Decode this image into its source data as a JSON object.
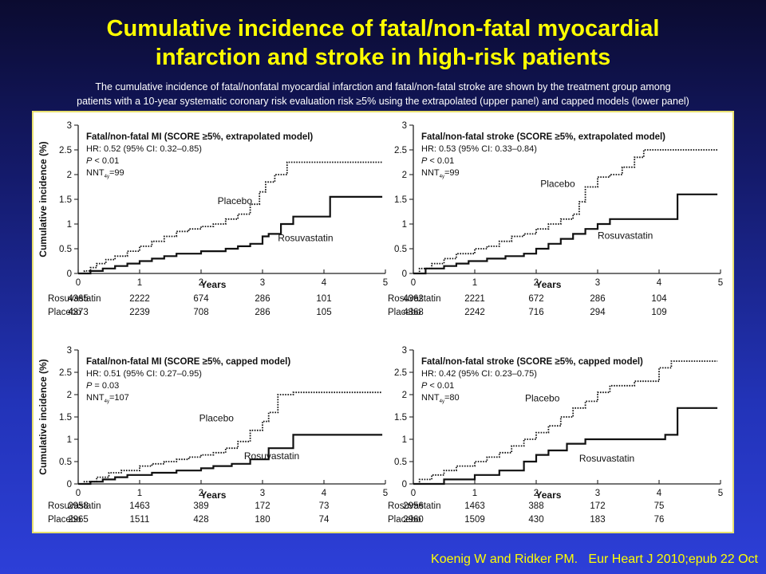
{
  "slide": {
    "title_line1": "Cumulative incidence of fatal/non-fatal myocardial",
    "title_line2": "infarction and stroke in high-risk patients",
    "subtitle_line1": "The cumulative incidence of fatal/nonfatal myocardial infarction and fatal/non-fatal stroke are shown by the treatment group among",
    "subtitle_line2": "patients with a 10-year systematic coronary risk evaluation risk ≥5% using the extrapolated (upper panel) and capped models (lower panel)",
    "citation": "Koenig W and Ridker PM.   Eur Heart J 2010;epub 22 Oct",
    "colors": {
      "title": "#ffff00",
      "subtitle": "#ffffff",
      "citation": "#ffff00",
      "figure_border": "#e8e070"
    }
  },
  "chart_data": [
    {
      "type": "line",
      "title": "Fatal/non-fatal MI (SCORE ≥5%, extrapolated model)",
      "stats": [
        "HR: 0.52 (95% CI: 0.32–0.85)",
        "P < 0.01",
        "NNT=99"
      ],
      "stat_p_letter": "P",
      "stat_p_rest": " < 0.01",
      "nnt_prefix": "NNT",
      "nnt_sub": "4y",
      "nnt_value": "=99",
      "xlabel": "Years",
      "ylabel": "Cumulative incidence (%)",
      "xlim": [
        0,
        5
      ],
      "ylim": [
        0,
        3
      ],
      "x_ticks": [
        "0",
        "1",
        "2",
        "3",
        "4",
        "5"
      ],
      "y_ticks": [
        "0",
        "0.5",
        "1",
        "1.5",
        "2",
        "2.5",
        "3"
      ],
      "series": [
        {
          "name": "Placebo",
          "style": "dotted",
          "points": [
            [
              0,
              0
            ],
            [
              0.1,
              0.05
            ],
            [
              0.2,
              0.12
            ],
            [
              0.3,
              0.2
            ],
            [
              0.45,
              0.28
            ],
            [
              0.6,
              0.35
            ],
            [
              0.8,
              0.45
            ],
            [
              1.0,
              0.55
            ],
            [
              1.2,
              0.65
            ],
            [
              1.4,
              0.75
            ],
            [
              1.6,
              0.85
            ],
            [
              1.8,
              0.9
            ],
            [
              2.0,
              0.95
            ],
            [
              2.2,
              1.0
            ],
            [
              2.4,
              1.1
            ],
            [
              2.6,
              1.2
            ],
            [
              2.8,
              1.4
            ],
            [
              2.95,
              1.65
            ],
            [
              3.05,
              1.85
            ],
            [
              3.2,
              2.0
            ],
            [
              3.4,
              2.25
            ],
            [
              3.6,
              2.25
            ],
            [
              4.2,
              2.25
            ],
            [
              4.4,
              2.25
            ],
            [
              4.95,
              2.25
            ]
          ]
        },
        {
          "name": "Rosuvastatin",
          "style": "solid",
          "points": [
            [
              0,
              0
            ],
            [
              0.2,
              0.05
            ],
            [
              0.4,
              0.1
            ],
            [
              0.6,
              0.15
            ],
            [
              0.8,
              0.2
            ],
            [
              1.0,
              0.25
            ],
            [
              1.2,
              0.3
            ],
            [
              1.4,
              0.35
            ],
            [
              1.6,
              0.4
            ],
            [
              2.0,
              0.45
            ],
            [
              2.4,
              0.5
            ],
            [
              2.6,
              0.55
            ],
            [
              2.8,
              0.6
            ],
            [
              3.0,
              0.75
            ],
            [
              3.1,
              0.8
            ],
            [
              3.3,
              1.0
            ],
            [
              3.5,
              1.15
            ],
            [
              4.0,
              1.15
            ],
            [
              4.1,
              1.55
            ],
            [
              4.95,
              1.55
            ]
          ]
        }
      ],
      "series_labels": {
        "Placebo": [
          2.55,
          1.4
        ],
        "Rosuvastatin": [
          3.7,
          0.65
        ]
      },
      "at_risk_rows": [
        {
          "label": "Rosuvastatin",
          "values": [
            "4365",
            "2222",
            "674",
            "286",
            "101"
          ]
        },
        {
          "label": "Placebo",
          "values": [
            "4373",
            "2239",
            "708",
            "286",
            "105"
          ]
        }
      ]
    },
    {
      "type": "line",
      "title": "Fatal/non-fatal stroke (SCORE ≥5%, extrapolated model)",
      "stats": [
        "HR: 0.53 (95% CI: 0.33–0.84)",
        "P < 0.01",
        "NNT=99"
      ],
      "stat_p_letter": "P",
      "stat_p_rest": " < 0.01",
      "nnt_prefix": "NNT",
      "nnt_sub": "4y",
      "nnt_value": "=99",
      "xlabel": "Years",
      "ylabel": "",
      "xlim": [
        0,
        5
      ],
      "ylim": [
        0,
        3
      ],
      "x_ticks": [
        "0",
        "1",
        "2",
        "3",
        "4",
        "5"
      ],
      "y_ticks": [
        "0",
        "0.5",
        "1",
        "1.5",
        "2",
        "2.5",
        "3"
      ],
      "series": [
        {
          "name": "Placebo",
          "style": "dotted",
          "points": [
            [
              0,
              0
            ],
            [
              0.1,
              0.1
            ],
            [
              0.3,
              0.2
            ],
            [
              0.5,
              0.3
            ],
            [
              0.7,
              0.4
            ],
            [
              1.0,
              0.5
            ],
            [
              1.2,
              0.55
            ],
            [
              1.4,
              0.65
            ],
            [
              1.6,
              0.75
            ],
            [
              1.8,
              0.8
            ],
            [
              2.0,
              0.9
            ],
            [
              2.2,
              1.0
            ],
            [
              2.4,
              1.1
            ],
            [
              2.6,
              1.2
            ],
            [
              2.7,
              1.45
            ],
            [
              2.8,
              1.75
            ],
            [
              3.0,
              1.95
            ],
            [
              3.2,
              2.0
            ],
            [
              3.4,
              2.15
            ],
            [
              3.6,
              2.35
            ],
            [
              3.75,
              2.5
            ],
            [
              4.0,
              2.5
            ],
            [
              4.95,
              2.5
            ]
          ]
        },
        {
          "name": "Rosuvastatin",
          "style": "solid",
          "points": [
            [
              0,
              0
            ],
            [
              0.2,
              0.1
            ],
            [
              0.5,
              0.15
            ],
            [
              0.7,
              0.2
            ],
            [
              0.9,
              0.25
            ],
            [
              1.2,
              0.3
            ],
            [
              1.5,
              0.35
            ],
            [
              1.8,
              0.4
            ],
            [
              2.0,
              0.5
            ],
            [
              2.2,
              0.6
            ],
            [
              2.4,
              0.7
            ],
            [
              2.6,
              0.8
            ],
            [
              2.8,
              0.9
            ],
            [
              3.0,
              1.0
            ],
            [
              3.2,
              1.1
            ],
            [
              3.6,
              1.1
            ],
            [
              4.2,
              1.1
            ],
            [
              4.3,
              1.6
            ],
            [
              4.95,
              1.6
            ]
          ]
        }
      ],
      "series_labels": {
        "Placebo": [
          2.35,
          1.75
        ],
        "Rosuvastatin": [
          3.45,
          0.7
        ]
      },
      "at_risk_rows": [
        {
          "label": "Rosuvastatin",
          "values": [
            "4362",
            "2221",
            "672",
            "286",
            "104"
          ]
        },
        {
          "label": "Placebo",
          "values": [
            "4368",
            "2242",
            "716",
            "294",
            "109"
          ]
        }
      ]
    },
    {
      "type": "line",
      "title": "Fatal/non-fatal MI (SCORE ≥5%, capped model)",
      "stats": [
        "HR: 0.51 (95% CI: 0.27–0.95)",
        "P = 0.03",
        "NNT=107"
      ],
      "stat_p_letter": "P",
      "stat_p_rest": " = 0.03",
      "nnt_prefix": "NNT",
      "nnt_sub": "4y",
      "nnt_value": "=107",
      "xlabel": "Years",
      "ylabel": "Cumulative incidence (%)",
      "xlim": [
        0,
        5
      ],
      "ylim": [
        0,
        3
      ],
      "x_ticks": [
        "0",
        "1",
        "2",
        "3",
        "4",
        "5"
      ],
      "y_ticks": [
        "0",
        "0.5",
        "1",
        "1.5",
        "2",
        "2.5",
        "3"
      ],
      "series": [
        {
          "name": "Placebo",
          "style": "dotted",
          "points": [
            [
              0,
              0
            ],
            [
              0.1,
              0.05
            ],
            [
              0.3,
              0.15
            ],
            [
              0.5,
              0.25
            ],
            [
              0.7,
              0.3
            ],
            [
              1.0,
              0.4
            ],
            [
              1.2,
              0.45
            ],
            [
              1.4,
              0.5
            ],
            [
              1.6,
              0.55
            ],
            [
              1.8,
              0.6
            ],
            [
              2.0,
              0.65
            ],
            [
              2.2,
              0.7
            ],
            [
              2.4,
              0.8
            ],
            [
              2.6,
              0.95
            ],
            [
              2.8,
              1.2
            ],
            [
              3.0,
              1.4
            ],
            [
              3.1,
              1.6
            ],
            [
              3.25,
              2.0
            ],
            [
              3.5,
              2.05
            ],
            [
              4.0,
              2.05
            ],
            [
              4.95,
              2.05
            ]
          ]
        },
        {
          "name": "Rosuvastatin",
          "style": "solid",
          "points": [
            [
              0,
              0
            ],
            [
              0.2,
              0.05
            ],
            [
              0.4,
              0.1
            ],
            [
              0.6,
              0.15
            ],
            [
              0.8,
              0.2
            ],
            [
              1.2,
              0.25
            ],
            [
              1.6,
              0.3
            ],
            [
              2.0,
              0.35
            ],
            [
              2.2,
              0.4
            ],
            [
              2.5,
              0.45
            ],
            [
              2.8,
              0.55
            ],
            [
              3.1,
              0.8
            ],
            [
              3.5,
              1.1
            ],
            [
              4.0,
              1.1
            ],
            [
              4.95,
              1.1
            ]
          ]
        }
      ],
      "series_labels": {
        "Placebo": [
          2.25,
          1.4
        ],
        "Rosuvastatin": [
          3.15,
          0.55
        ]
      },
      "at_risk_rows": [
        {
          "label": "Rosuvastatin",
          "values": [
            "2958",
            "1463",
            "389",
            "172",
            "73"
          ]
        },
        {
          "label": "Placebo",
          "values": [
            "2965",
            "1511",
            "428",
            "180",
            "74"
          ]
        }
      ]
    },
    {
      "type": "line",
      "title": "Fatal/non-fatal stroke (SCORE ≥5%, capped model)",
      "stats": [
        "HR: 0.42 (95% CI: 0.23–0.75)",
        "P < 0.01",
        "NNT=80"
      ],
      "stat_p_letter": "P",
      "stat_p_rest": " < 0.01",
      "nnt_prefix": "NNT",
      "nnt_sub": "4y",
      "nnt_value": "=80",
      "xlabel": "Years",
      "ylabel": "",
      "xlim": [
        0,
        5
      ],
      "ylim": [
        0,
        3
      ],
      "x_ticks": [
        "0",
        "1",
        "2",
        "3",
        "4",
        "5"
      ],
      "y_ticks": [
        "0",
        "0.5",
        "1",
        "1.5",
        "2",
        "2.5",
        "3"
      ],
      "series": [
        {
          "name": "Placebo",
          "style": "dotted",
          "points": [
            [
              0,
              0
            ],
            [
              0.1,
              0.1
            ],
            [
              0.3,
              0.2
            ],
            [
              0.5,
              0.3
            ],
            [
              0.7,
              0.4
            ],
            [
              1.0,
              0.5
            ],
            [
              1.2,
              0.6
            ],
            [
              1.4,
              0.7
            ],
            [
              1.6,
              0.85
            ],
            [
              1.8,
              1.0
            ],
            [
              2.0,
              1.15
            ],
            [
              2.2,
              1.3
            ],
            [
              2.4,
              1.5
            ],
            [
              2.6,
              1.7
            ],
            [
              2.8,
              1.85
            ],
            [
              3.0,
              2.05
            ],
            [
              3.2,
              2.2
            ],
            [
              3.4,
              2.2
            ],
            [
              3.6,
              2.3
            ],
            [
              3.8,
              2.3
            ],
            [
              4.0,
              2.6
            ],
            [
              4.2,
              2.75
            ],
            [
              4.95,
              2.75
            ]
          ]
        },
        {
          "name": "Rosuvastatin",
          "style": "solid",
          "points": [
            [
              0,
              0
            ],
            [
              0.5,
              0.1
            ],
            [
              1.0,
              0.2
            ],
            [
              1.4,
              0.3
            ],
            [
              1.8,
              0.5
            ],
            [
              2.0,
              0.65
            ],
            [
              2.2,
              0.75
            ],
            [
              2.5,
              0.9
            ],
            [
              2.8,
              1.0
            ],
            [
              3.6,
              1.0
            ],
            [
              4.1,
              1.1
            ],
            [
              4.3,
              1.7
            ],
            [
              4.95,
              1.7
            ]
          ]
        }
      ],
      "series_labels": {
        "Placebo": [
          2.1,
          1.85
        ],
        "Rosuvastatin": [
          3.15,
          0.5
        ]
      },
      "at_risk_rows": [
        {
          "label": "Rosuvastatin",
          "values": [
            "2956",
            "1463",
            "388",
            "172",
            "75"
          ]
        },
        {
          "label": "Placebo",
          "values": [
            "2960",
            "1509",
            "430",
            "183",
            "76"
          ]
        }
      ]
    }
  ]
}
